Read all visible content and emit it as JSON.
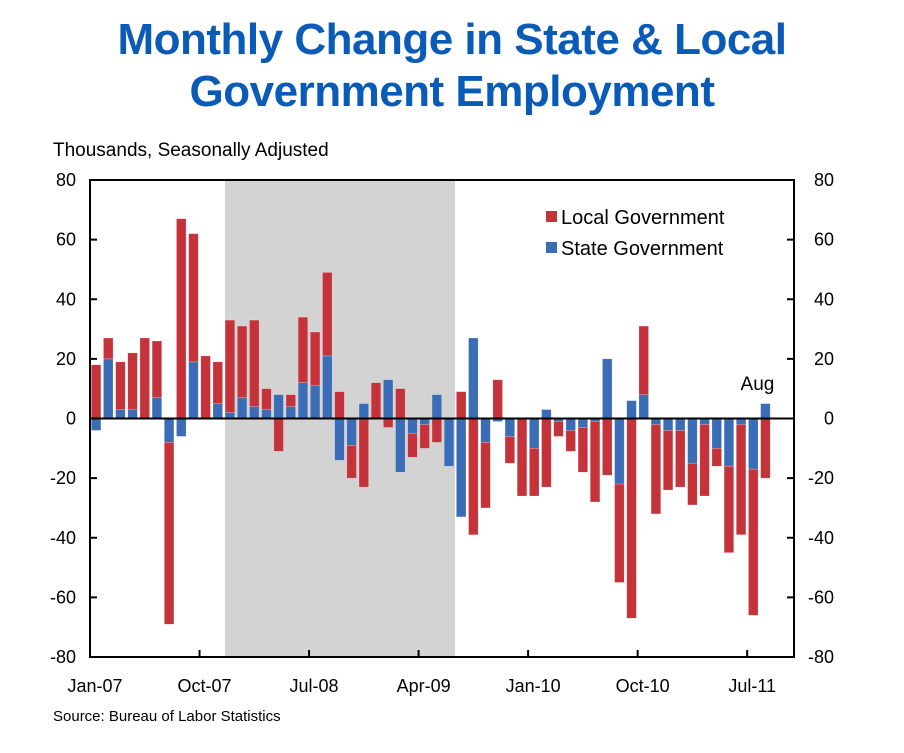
{
  "header": {
    "title_line1": "Monthly Change in State & Local",
    "title_line2": "Government Employment",
    "units": "Thousands, Seasonally Adjusted"
  },
  "footer": {
    "source": "Source: Bureau of Labor Statistics"
  },
  "colors": {
    "local": "#c4323a",
    "state": "#3a6db5",
    "recession": "#d3d3d3",
    "title": "#0a5bb8"
  },
  "chart_data": {
    "type": "bar",
    "stacked": true,
    "title": "Monthly Change in State & Local Government Employment",
    "ylabel": "Thousands, Seasonally Adjusted",
    "xlabel": "",
    "ylim": [
      -80,
      80
    ],
    "yticks": [
      80,
      60,
      40,
      20,
      0,
      -20,
      -40,
      -60,
      -80
    ],
    "ytick_labels": [
      "80",
      "60",
      "40",
      "20",
      "0",
      "-20",
      "-40",
      "-60",
      "-80"
    ],
    "xtick_labels": [
      "Jan-07",
      "Oct-07",
      "Jul-08",
      "Apr-09",
      "Jan-10",
      "Oct-10",
      "Jul-11"
    ],
    "xtick_index": [
      0,
      9,
      18,
      27,
      36,
      45,
      54
    ],
    "legend": {
      "position": "top-right",
      "entries": [
        "Local Government",
        "State Government"
      ]
    },
    "annotation": {
      "text": "Aug",
      "index": 55
    },
    "shaded_region": {
      "label": "recession",
      "from": "Dec-07",
      "to": "Jun-09",
      "from_index": 11,
      "to_index": 29
    },
    "categories": [
      "Jan-07",
      "Feb-07",
      "Mar-07",
      "Apr-07",
      "May-07",
      "Jun-07",
      "Jul-07",
      "Aug-07",
      "Sep-07",
      "Oct-07",
      "Nov-07",
      "Dec-07",
      "Jan-08",
      "Feb-08",
      "Mar-08",
      "Apr-08",
      "May-08",
      "Jun-08",
      "Jul-08",
      "Aug-08",
      "Sep-08",
      "Oct-08",
      "Nov-08",
      "Dec-08",
      "Jan-09",
      "Feb-09",
      "Mar-09",
      "Apr-09",
      "May-09",
      "Jun-09",
      "Jul-09",
      "Aug-09",
      "Sep-09",
      "Oct-09",
      "Nov-09",
      "Dec-09",
      "Jan-10",
      "Feb-10",
      "Mar-10",
      "Apr-10",
      "May-10",
      "Jun-10",
      "Jul-10",
      "Aug-10",
      "Sep-10",
      "Oct-10",
      "Nov-10",
      "Dec-10",
      "Jan-11",
      "Feb-11",
      "Mar-11",
      "Apr-11",
      "May-11",
      "Jun-11",
      "Jul-11",
      "Aug-11"
    ],
    "series": [
      {
        "name": "State Government",
        "values": [
          -4,
          20,
          3,
          3,
          0,
          7,
          -8,
          -6,
          19,
          0,
          5,
          2,
          7,
          4,
          3,
          8,
          4,
          12,
          11,
          21,
          -14,
          -9,
          5,
          0,
          13,
          -18,
          -5,
          -2,
          8,
          -16,
          -33,
          27,
          -8,
          -1,
          -6,
          0,
          -10,
          3,
          -1,
          -4,
          -3,
          -1,
          20,
          -22,
          6,
          8,
          -2,
          -4,
          -4,
          -15,
          -2,
          -10,
          -16,
          -2,
          -17,
          5
        ]
      },
      {
        "name": "Local Government",
        "values": [
          18,
          7,
          16,
          19,
          27,
          19,
          -61,
          67,
          43,
          21,
          14,
          31,
          24,
          29,
          7,
          -11,
          4,
          22,
          18,
          28,
          9,
          -11,
          -23,
          12,
          -3,
          10,
          -8,
          -8,
          -8,
          0,
          9,
          -39,
          -22,
          13,
          -9,
          -26,
          -16,
          -23,
          -5,
          -7,
          -15,
          -27,
          -19,
          -33,
          -67,
          23,
          -30,
          -20,
          -19,
          -14,
          -24,
          -6,
          -29,
          -37,
          -49,
          -20
        ]
      }
    ]
  }
}
